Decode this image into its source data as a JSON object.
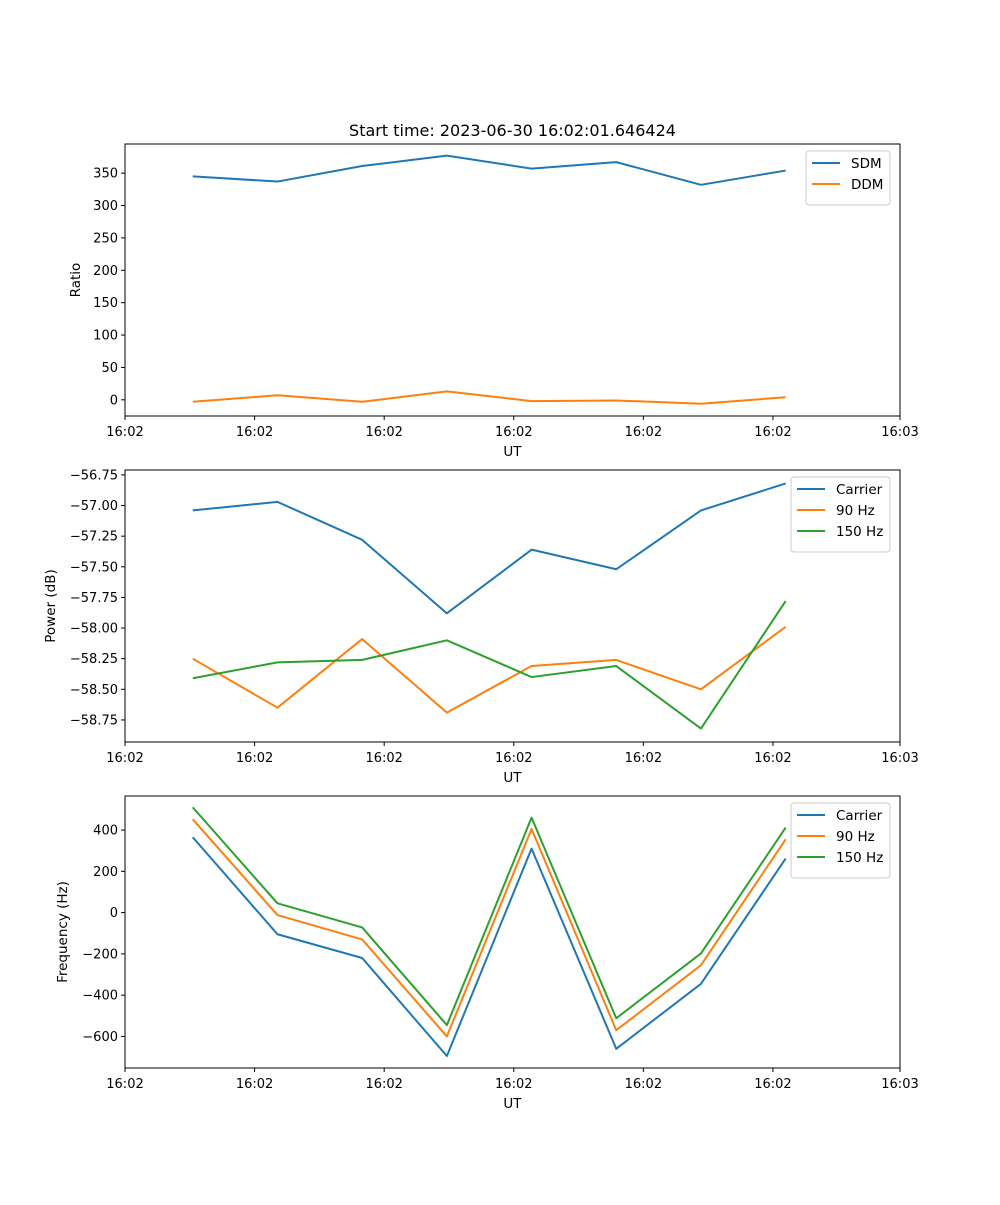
{
  "colors": {
    "blue": "#1f77b4",
    "orange": "#ff7f0e",
    "green": "#2ca02c"
  },
  "chart_data": [
    {
      "type": "line",
      "title": "Start time: 2023-06-30 16:02:01.646424",
      "xlabel": "UT",
      "ylabel": "Ratio",
      "x": [
        1,
        2,
        3,
        4,
        5,
        6,
        7,
        8
      ],
      "xlim": [
        0.2,
        9.35
      ],
      "xticks": [
        0.2,
        1.73,
        3.26,
        4.79,
        6.32,
        7.85,
        9.35
      ],
      "xticklabels": [
        "16:02",
        "16:02",
        "16:02",
        "16:02",
        "16:02",
        "16:02",
        "16:03"
      ],
      "ylim": [
        -25,
        395
      ],
      "yticks": [
        0,
        50,
        100,
        150,
        200,
        250,
        300,
        350
      ],
      "yticklabels": [
        "0",
        "50",
        "100",
        "150",
        "200",
        "250",
        "300",
        "350"
      ],
      "legend_position": "top-right",
      "series": [
        {
          "name": "SDM",
          "color": "#1f77b4",
          "values": [
            345,
            337,
            361,
            377,
            357,
            367,
            332,
            354
          ]
        },
        {
          "name": "DDM",
          "color": "#ff7f0e",
          "values": [
            -3,
            7,
            -3,
            13,
            -2,
            -1,
            -6,
            4
          ]
        }
      ]
    },
    {
      "type": "line",
      "title": "",
      "xlabel": "UT",
      "ylabel": "Power (dB)",
      "x": [
        1,
        2,
        3,
        4,
        5,
        6,
        7,
        8
      ],
      "xlim": [
        0.2,
        9.35
      ],
      "xticks": [
        0.2,
        1.73,
        3.26,
        4.79,
        6.32,
        7.85,
        9.35
      ],
      "xticklabels": [
        "16:02",
        "16:02",
        "16:02",
        "16:02",
        "16:02",
        "16:02",
        "16:03"
      ],
      "ylim": [
        -58.93,
        -56.71
      ],
      "yticks": [
        -58.75,
        -58.5,
        -58.25,
        -58.0,
        -57.75,
        -57.5,
        -57.25,
        -57.0,
        -56.75
      ],
      "yticklabels": [
        "−58.75",
        "−58.50",
        "−58.25",
        "−58.00",
        "−57.75",
        "−57.50",
        "−57.25",
        "−57.00",
        "−56.75"
      ],
      "legend_position": "top-right",
      "series": [
        {
          "name": "Carrier",
          "color": "#1f77b4",
          "values": [
            -57.04,
            -56.97,
            -57.28,
            -57.88,
            -57.36,
            -57.52,
            -57.04,
            -56.82
          ]
        },
        {
          "name": "90 Hz",
          "color": "#ff7f0e",
          "values": [
            -58.25,
            -58.65,
            -58.09,
            -58.69,
            -58.31,
            -58.26,
            -58.5,
            -57.99
          ]
        },
        {
          "name": "150 Hz",
          "color": "#2ca02c",
          "values": [
            -58.41,
            -58.28,
            -58.26,
            -58.1,
            -58.4,
            -58.31,
            -58.82,
            -57.78
          ]
        }
      ]
    },
    {
      "type": "line",
      "title": "",
      "xlabel": "UT",
      "ylabel": "Frequency (Hz)",
      "x": [
        1,
        2,
        3,
        4,
        5,
        6,
        7,
        8
      ],
      "xlim": [
        0.2,
        9.35
      ],
      "xticks": [
        0.2,
        1.73,
        3.26,
        4.79,
        6.32,
        7.85,
        9.35
      ],
      "xticklabels": [
        "16:02",
        "16:02",
        "16:02",
        "16:02",
        "16:02",
        "16:02",
        "16:03"
      ],
      "ylim": [
        -753,
        565
      ],
      "yticks": [
        -600,
        -400,
        -200,
        0,
        200,
        400
      ],
      "yticklabels": [
        "−600",
        "−400",
        "−200",
        "0",
        "200",
        "400"
      ],
      "legend_position": "top-right",
      "series": [
        {
          "name": "Carrier",
          "color": "#1f77b4",
          "values": [
            365,
            -105,
            -220,
            -695,
            310,
            -660,
            -345,
            262
          ]
        },
        {
          "name": "90 Hz",
          "color": "#ff7f0e",
          "values": [
            452,
            -12,
            -130,
            -600,
            405,
            -570,
            -255,
            355
          ]
        },
        {
          "name": "150 Hz",
          "color": "#2ca02c",
          "values": [
            510,
            45,
            -72,
            -545,
            460,
            -512,
            -198,
            412
          ]
        }
      ]
    }
  ]
}
